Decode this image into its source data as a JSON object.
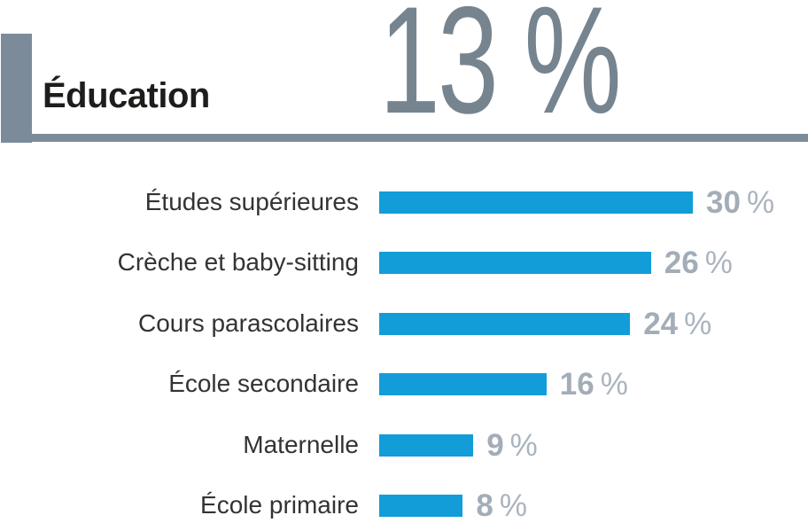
{
  "header": {
    "title": "Éducation",
    "headline_percentage": "13 %"
  },
  "chart_data": {
    "type": "bar",
    "orientation": "horizontal",
    "title": "Éducation",
    "headline_value": 13,
    "unit": "%",
    "categories": [
      "Études supérieures",
      "Crèche et baby-sitting",
      "Cours parascolaires",
      "École secondaire",
      "Maternelle",
      "École primaire"
    ],
    "values": [
      30,
      26,
      24,
      16,
      9,
      8
    ],
    "value_labels": [
      "30 %",
      "26 %",
      "24 %",
      "16 %",
      "9 %",
      "8 %"
    ],
    "xlim": [
      0,
      30
    ],
    "grid": false,
    "legend": false,
    "colors": {
      "bar": "#129dd9",
      "accent_slate": "#7b8b99",
      "headline_text": "#76848f",
      "value_text": "#a3adb8",
      "label_text": "#333333",
      "title_text": "#1d1d1b"
    }
  }
}
